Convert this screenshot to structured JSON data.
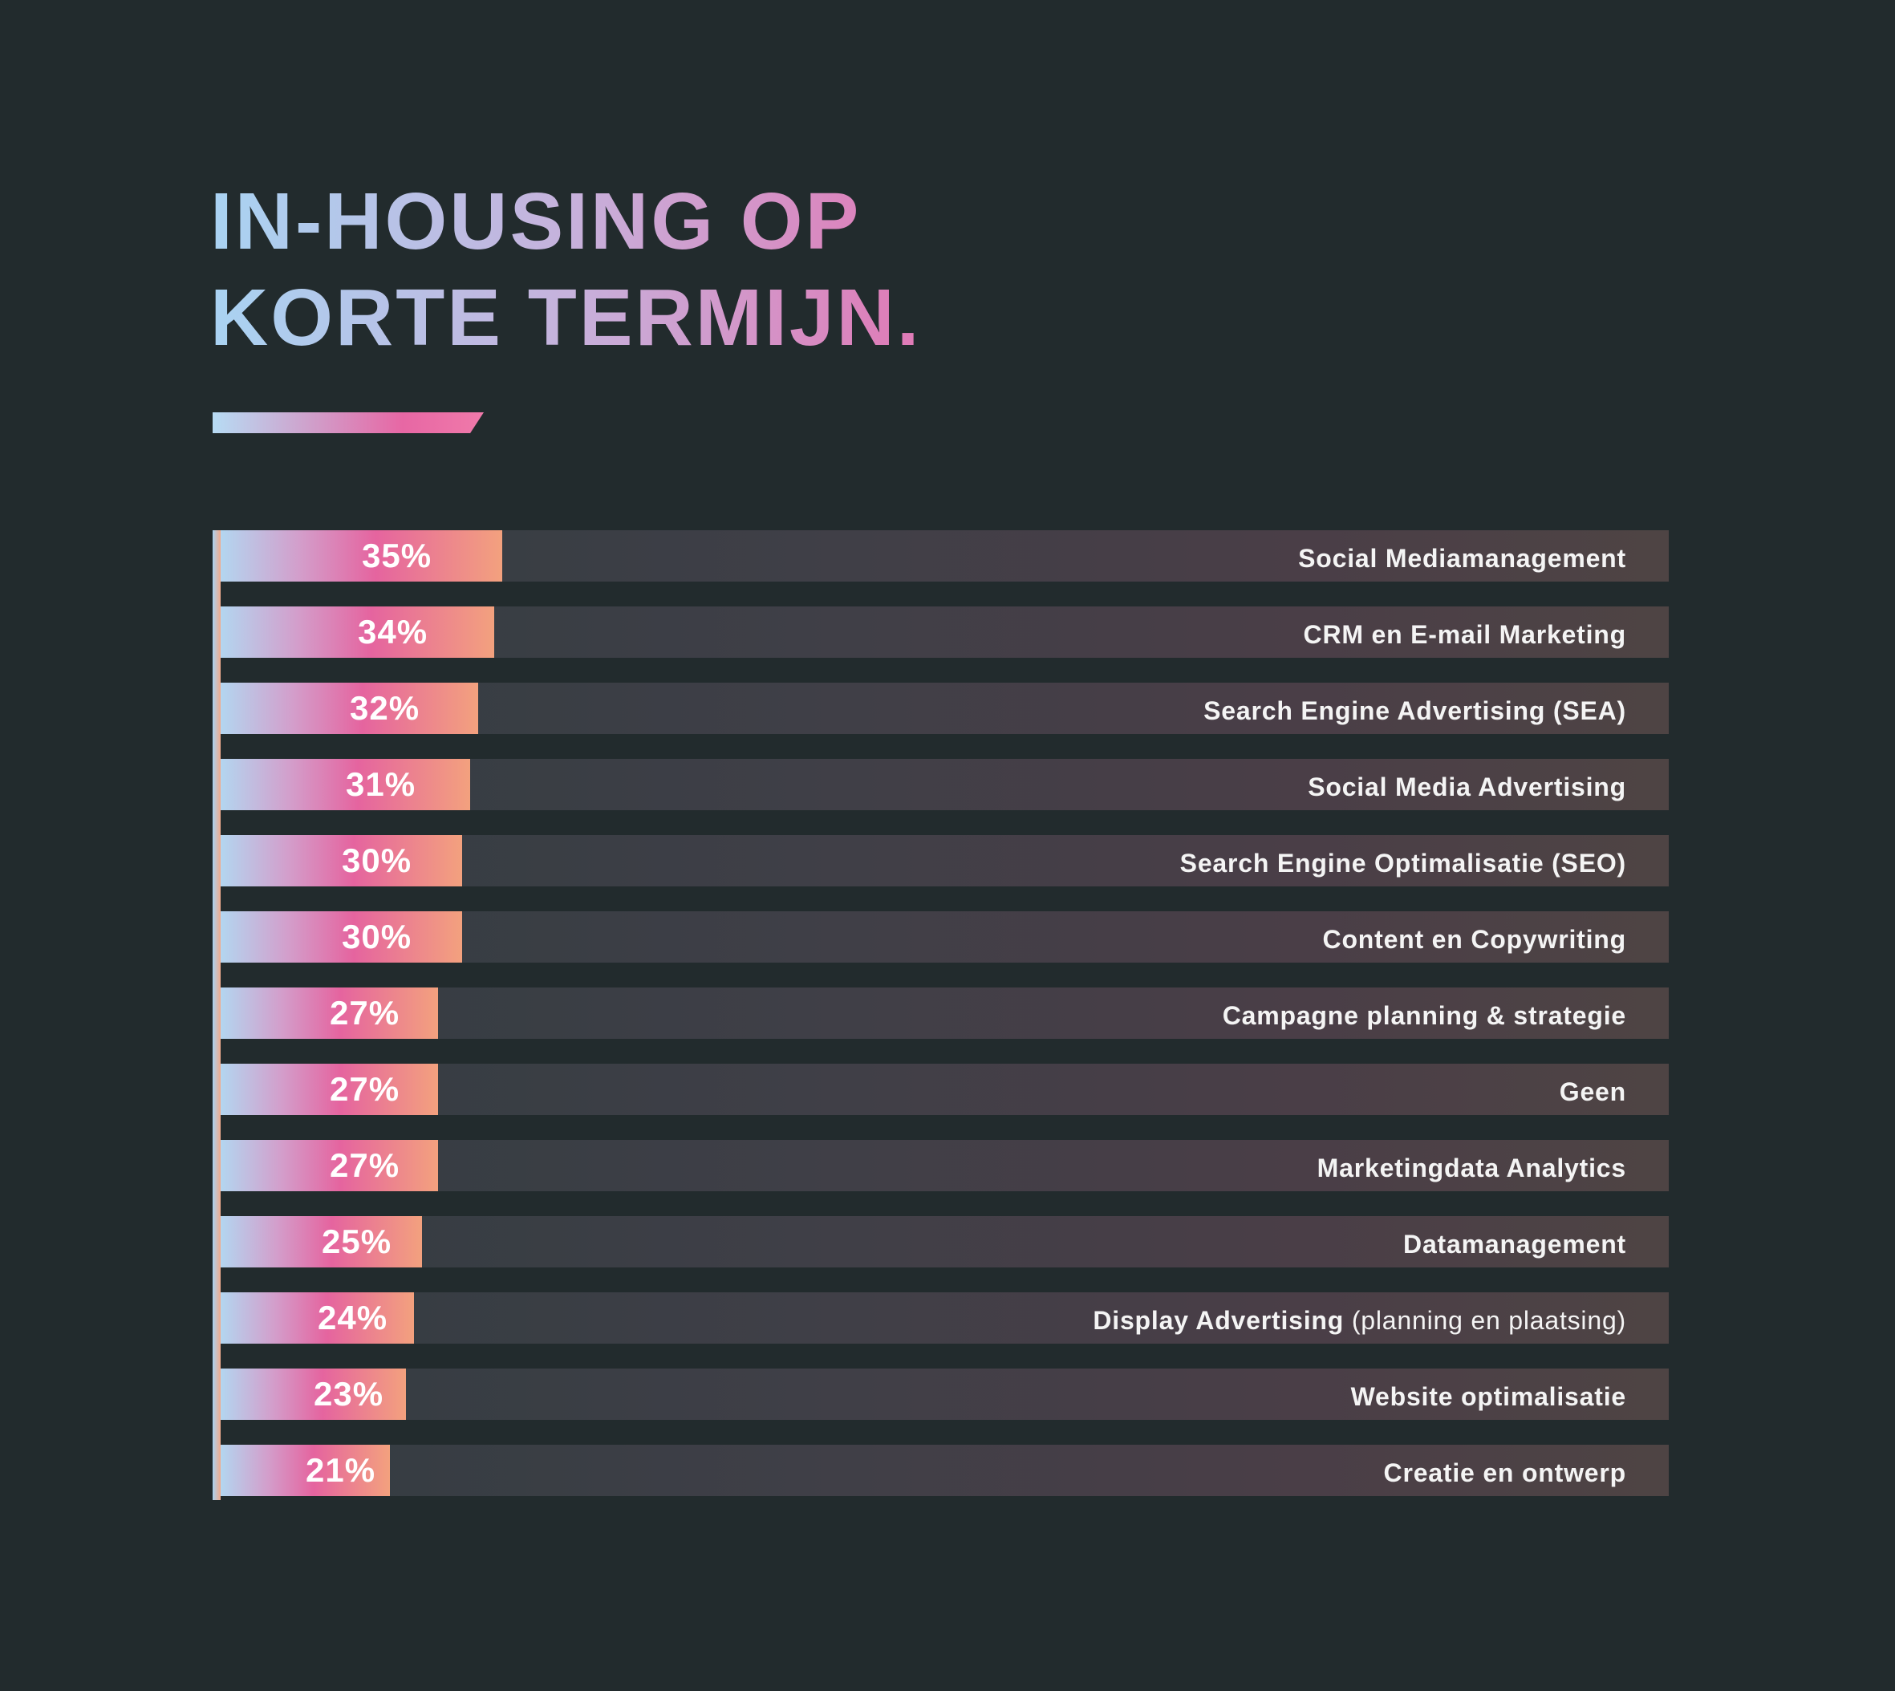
{
  "title": {
    "line1": "IN-HOUSING OP",
    "line2": "KORTE TERMIJN."
  },
  "chart_data": {
    "type": "bar",
    "orientation": "horizontal",
    "categories": [
      "Social Mediamanagement",
      "CRM en E-mail Marketing",
      "Search Engine Advertising (SEA)",
      "Social Media Advertising",
      "Search Engine Optimalisatie (SEO)",
      "Content en Copywriting",
      "Campagne planning & strategie",
      "Geen",
      "Marketingdata Analytics",
      "Datamanagement",
      "Display Advertising",
      "Website optimalisatie",
      "Creatie en ontwerp"
    ],
    "category_suffixes": [
      "",
      "",
      "",
      "",
      "",
      "",
      "",
      "",
      "",
      "",
      "(planning en plaatsing)",
      "",
      ""
    ],
    "values": [
      35,
      34,
      32,
      31,
      30,
      30,
      27,
      27,
      27,
      25,
      24,
      23,
      21
    ],
    "value_labels": [
      "35%",
      "34%",
      "32%",
      "31%",
      "30%",
      "30%",
      "27%",
      "27%",
      "27%",
      "25%",
      "24%",
      "23%",
      "21%"
    ],
    "xlim": [
      0,
      180
    ],
    "unit": "%",
    "grid": false,
    "legend": "none"
  },
  "colors": {
    "background": "#222b2d",
    "track": "#3f3f47",
    "fill_start": "#b3d6f0",
    "fill_mid": "#e5649f",
    "fill_end": "#f3a17e",
    "text": "#ffffff"
  }
}
